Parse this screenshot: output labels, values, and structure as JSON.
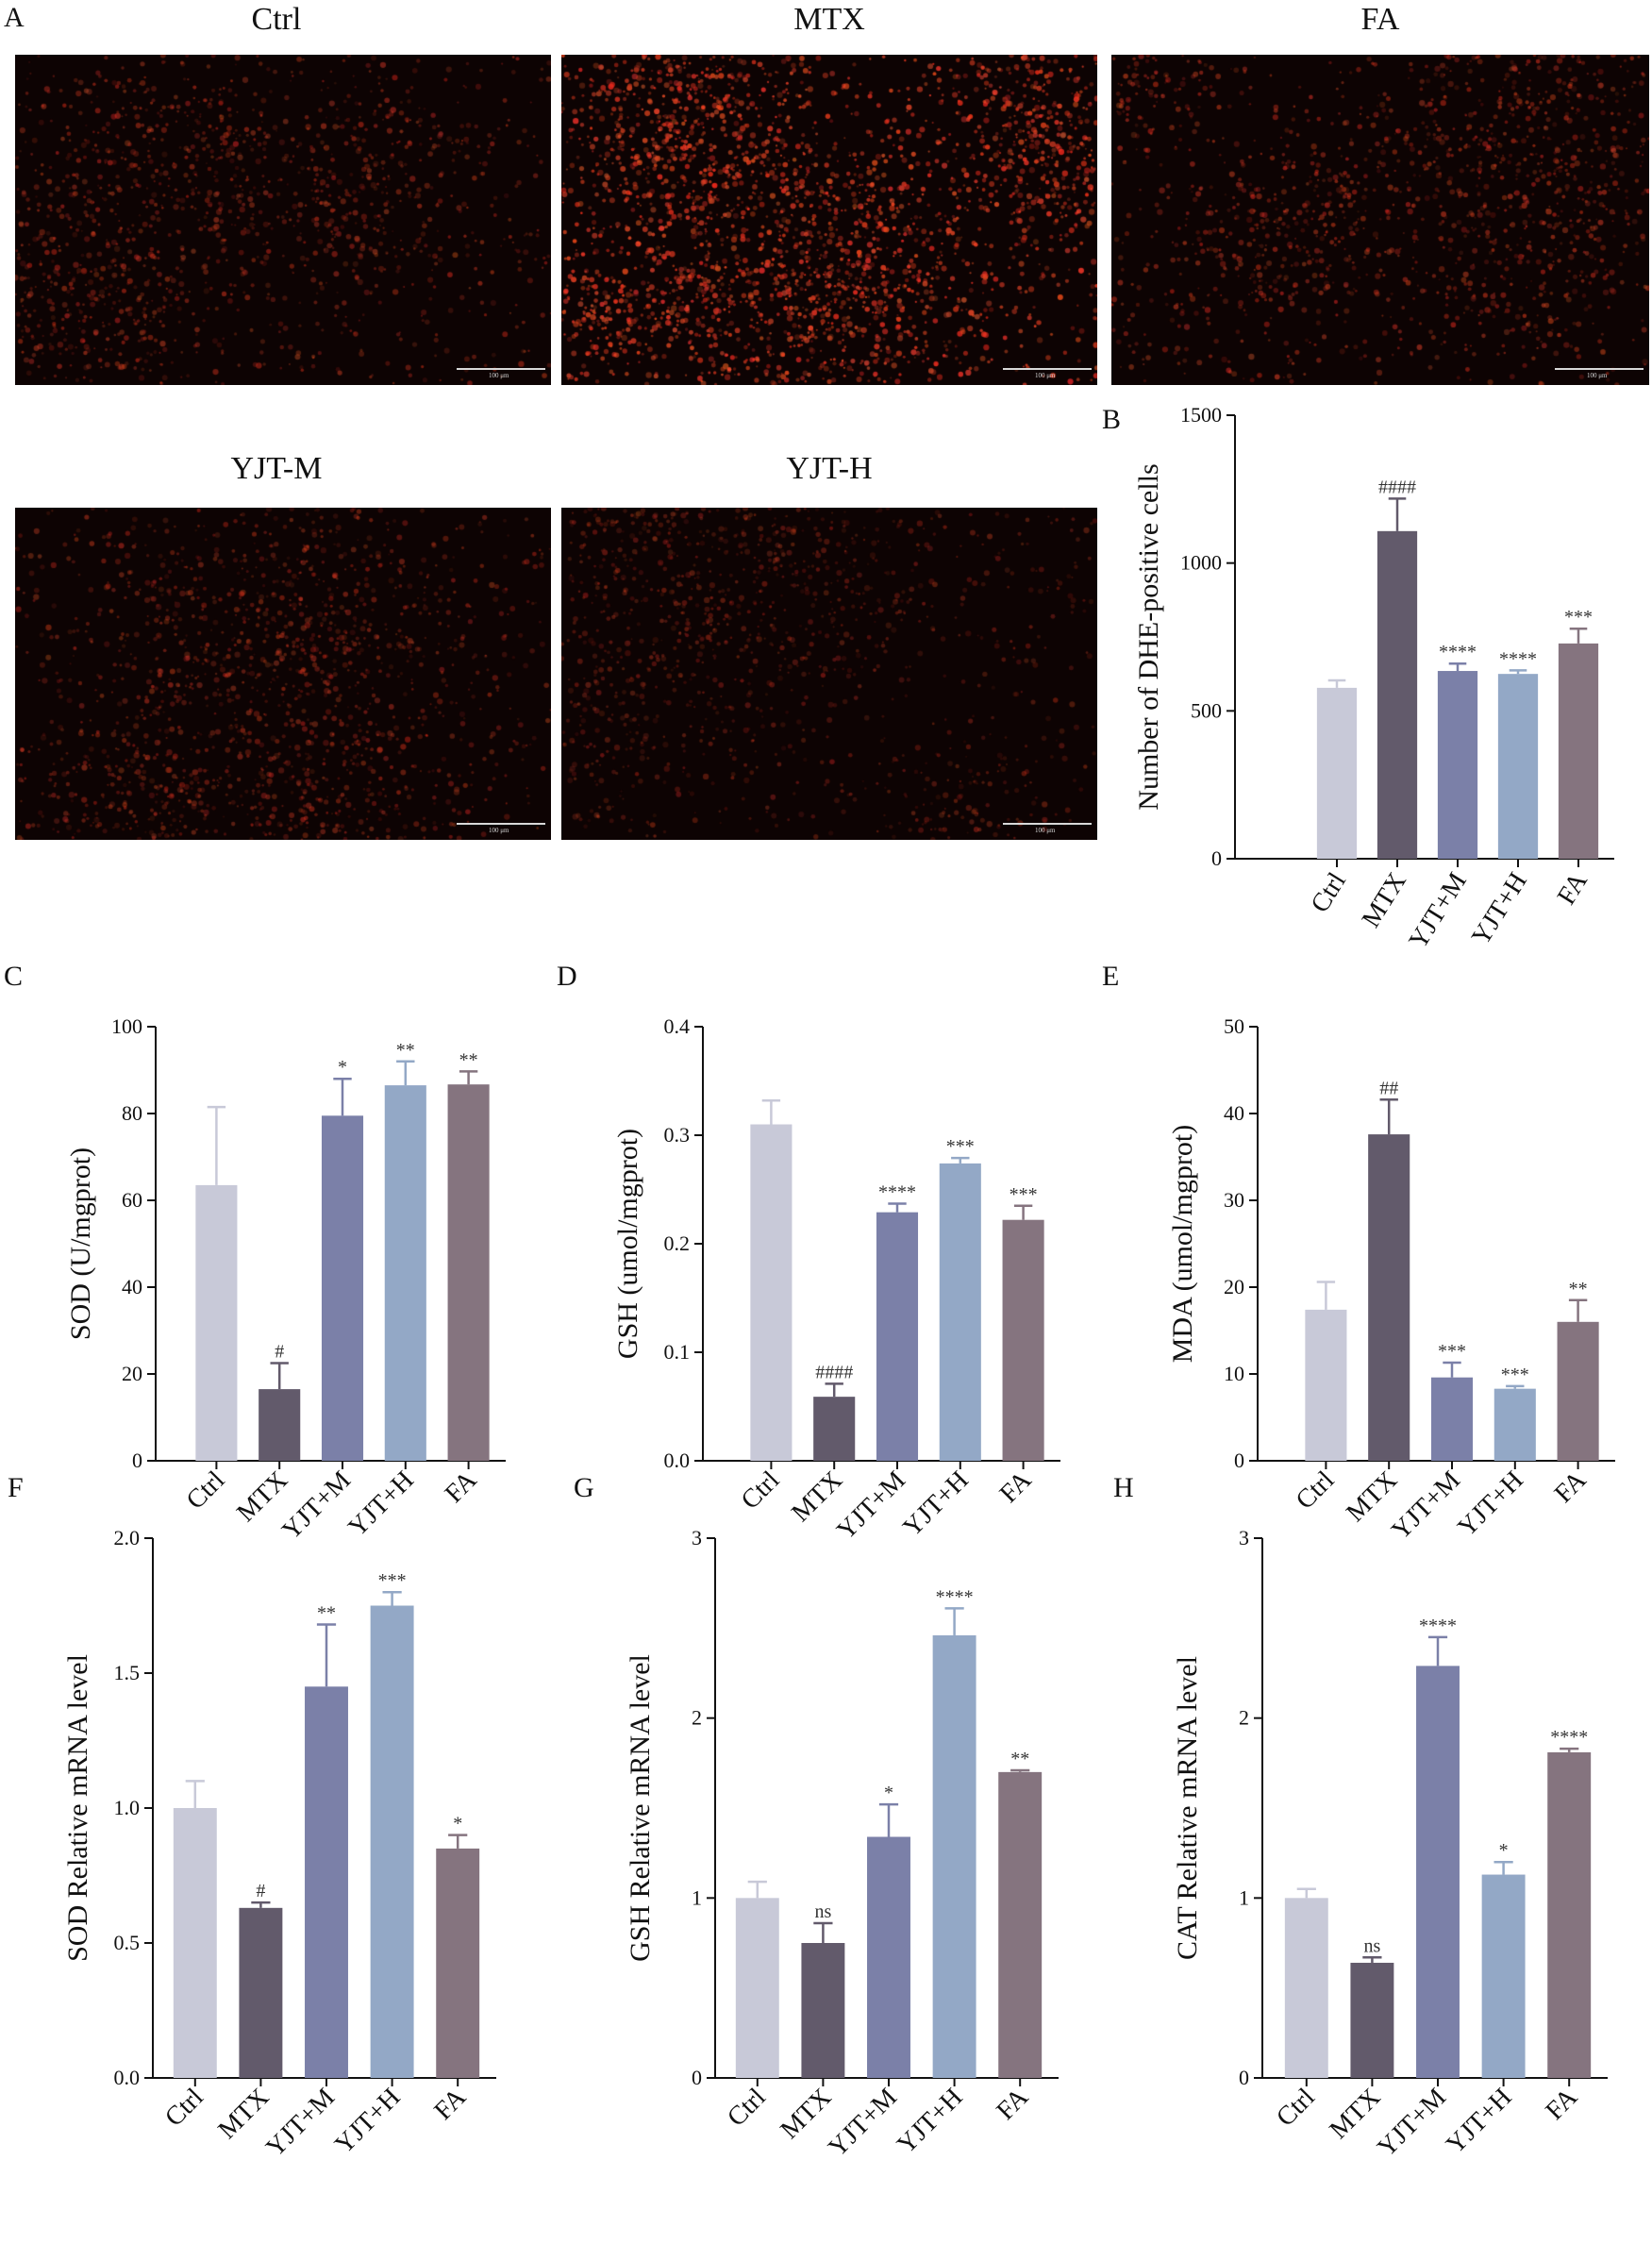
{
  "panels": {
    "A": "A",
    "B": "B",
    "C": "C",
    "D": "D",
    "E": "E",
    "F": "F",
    "G": "G",
    "H": "H"
  },
  "micrographs": [
    {
      "title": "Ctrl",
      "scale_label": "100 μm",
      "intensity": 0.55,
      "seed": 11
    },
    {
      "title": "MTX",
      "scale_label": "100 μm",
      "intensity": 1.0,
      "seed": 23
    },
    {
      "title": "FA",
      "scale_label": "100 μm",
      "intensity": 0.6,
      "seed": 37
    },
    {
      "title": "YJT-M",
      "scale_label": "100 μm",
      "intensity": 0.5,
      "seed": 51
    },
    {
      "title": "YJT-H",
      "scale_label": "100 μm",
      "intensity": 0.42,
      "seed": 67
    }
  ],
  "colors": {
    "Ctrl": "#c8c9d8",
    "MTX": "#625a6b",
    "YJT+M": "#7b80a8",
    "YJT+H": "#93a8c6",
    "FA": "#85747f",
    "axis": "#111111"
  },
  "chart_data": [
    {
      "id": "B",
      "type": "bar",
      "ylabel": "Number of DHE-positive cells",
      "categories": [
        "Ctrl",
        "MTX",
        "YJT+M",
        "YJT+H",
        "FA"
      ],
      "values": [
        578,
        1108,
        635,
        625,
        728
      ],
      "errors": [
        25,
        110,
        25,
        12,
        50
      ],
      "annotations": [
        "",
        "####",
        "****",
        "****",
        "***"
      ],
      "ylim": [
        0,
        1500
      ],
      "yticks": [
        "0",
        "500",
        "1000",
        "1500"
      ]
    },
    {
      "id": "C",
      "type": "bar",
      "ylabel": "SOD (U/mgprot)",
      "categories": [
        "Ctrl",
        "MTX",
        "YJT+M",
        "YJT+H",
        "FA"
      ],
      "values": [
        63.5,
        16.5,
        79.5,
        86.5,
        86.7
      ],
      "errors": [
        18,
        6,
        8.5,
        5.5,
        3
      ],
      "annotations": [
        "",
        "#",
        "*",
        "**",
        "**"
      ],
      "ylim": [
        0,
        100
      ],
      "yticks": [
        "0",
        "20",
        "40",
        "60",
        "80",
        "100"
      ]
    },
    {
      "id": "D",
      "type": "bar",
      "ylabel": "GSH (umol/mgprot)",
      "categories": [
        "Ctrl",
        "MTX",
        "YJT+M",
        "YJT+H",
        "FA"
      ],
      "values": [
        0.31,
        0.059,
        0.229,
        0.274,
        0.222
      ],
      "errors": [
        0.022,
        0.012,
        0.008,
        0.005,
        0.013
      ],
      "annotations": [
        "",
        "####",
        "****",
        "***",
        "***"
      ],
      "ylim": [
        0,
        0.4
      ],
      "yticks": [
        "0.0",
        "0.1",
        "0.2",
        "0.3",
        "0.4"
      ]
    },
    {
      "id": "E",
      "type": "bar",
      "ylabel": "MDA (umol/mgprot)",
      "categories": [
        "Ctrl",
        "MTX",
        "YJT+M",
        "YJT+H",
        "FA"
      ],
      "values": [
        17.4,
        37.6,
        9.6,
        8.3,
        16.0
      ],
      "errors": [
        3.2,
        4.0,
        1.7,
        0.3,
        2.5
      ],
      "annotations": [
        "",
        "##",
        "***",
        "***",
        "**"
      ],
      "ylim": [
        0,
        50
      ],
      "yticks": [
        "0",
        "10",
        "20",
        "30",
        "40",
        "50"
      ]
    },
    {
      "id": "F",
      "type": "bar",
      "ylabel": "SOD Relative mRNA level",
      "categories": [
        "Ctrl",
        "MTX",
        "YJT+M",
        "YJT+H",
        "FA"
      ],
      "values": [
        1.0,
        0.63,
        1.45,
        1.75,
        0.85
      ],
      "errors": [
        0.1,
        0.02,
        0.23,
        0.05,
        0.05
      ],
      "annotations": [
        "",
        "#",
        "**",
        "***",
        "*"
      ],
      "ylim": [
        0,
        2.0
      ],
      "yticks": [
        "0.0",
        "0.5",
        "1.0",
        "1.5",
        "2.0"
      ]
    },
    {
      "id": "G",
      "type": "bar",
      "ylabel": "GSH Relative mRNA level",
      "categories": [
        "Ctrl",
        "MTX",
        "YJT+M",
        "YJT+H",
        "FA"
      ],
      "values": [
        1.0,
        0.75,
        1.34,
        2.46,
        1.7
      ],
      "errors": [
        0.09,
        0.11,
        0.18,
        0.15,
        0.01
      ],
      "annotations": [
        "",
        "ns",
        "*",
        "****",
        "**"
      ],
      "ylim": [
        0,
        3
      ],
      "yticks": [
        "0",
        "1",
        "2",
        "3"
      ]
    },
    {
      "id": "H",
      "type": "bar",
      "ylabel": "CAT Relative mRNA level",
      "categories": [
        "Ctrl",
        "MTX",
        "YJT+M",
        "YJT+H",
        "FA"
      ],
      "values": [
        1.0,
        0.64,
        2.29,
        1.13,
        1.81
      ],
      "errors": [
        0.05,
        0.03,
        0.16,
        0.07,
        0.02
      ],
      "annotations": [
        "",
        "ns",
        "****",
        "*",
        "****"
      ],
      "ylim": [
        0,
        3
      ],
      "yticks": [
        "0",
        "1",
        "2",
        "3"
      ]
    }
  ]
}
